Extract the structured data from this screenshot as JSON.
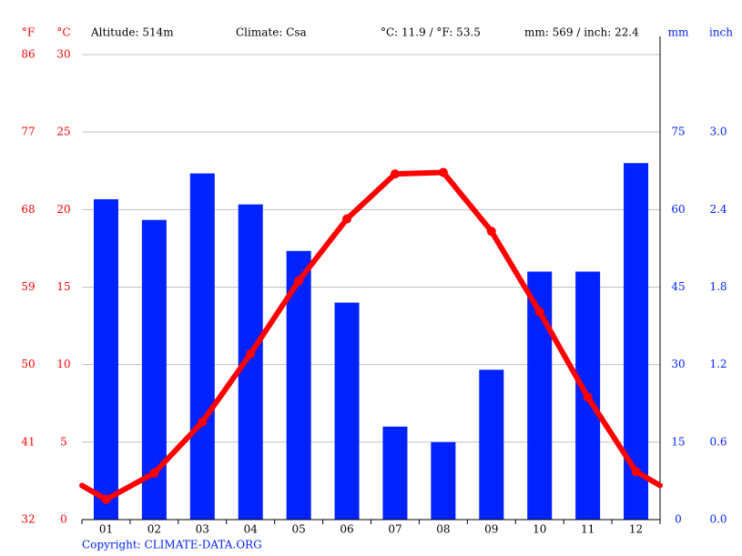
{
  "chart_data": {
    "type": "climate",
    "unit_f": "°F",
    "unit_c": "°C",
    "unit_mm": "mm",
    "unit_inch": "inch",
    "altitude": "Altitude: 514m",
    "climate": "Climate: Csa",
    "temp_summary": "°C: 11.9 / °F: 53.5",
    "precip_summary": "mm: 569 / inch: 22.4",
    "copyright": "Copyright: CLIMATE-DATA.ORG",
    "categories": [
      "01",
      "02",
      "03",
      "04",
      "05",
      "06",
      "07",
      "08",
      "09",
      "10",
      "11",
      "12"
    ],
    "series": [
      {
        "type": "line",
        "color": "#ff0000",
        "values": [
          1.3,
          3.0,
          6.3,
          10.7,
          15.4,
          19.4,
          22.3,
          22.4,
          18.6,
          13.4,
          7.9,
          3.1
        ]
      },
      {
        "type": "bar",
        "axis": "y2",
        "color": "#0022ff",
        "values": [
          62,
          58,
          67,
          61,
          52,
          42,
          18,
          15,
          29,
          48,
          48,
          69
        ]
      }
    ],
    "ylim": [
      0,
      30
    ],
    "yticks": [
      0,
      5,
      10,
      15,
      20,
      25,
      30
    ],
    "yflim": [
      32,
      86
    ],
    "yfticks": [
      32,
      41,
      50,
      59,
      68,
      77,
      86
    ],
    "y2lim": [
      0,
      90
    ],
    "y2ticks": [
      0,
      15,
      30,
      45,
      60,
      75
    ],
    "y3ticks": [
      {
        "value": 0,
        "label": "0.0"
      },
      {
        "value": 0.6,
        "label": "0.6"
      },
      {
        "value": 1.2,
        "label": "1.2"
      },
      {
        "value": 1.8,
        "label": "1.8"
      },
      {
        "value": 2.4,
        "label": "2.4"
      },
      {
        "value": 3.0,
        "label": "3.0"
      }
    ],
    "grid": true
  }
}
